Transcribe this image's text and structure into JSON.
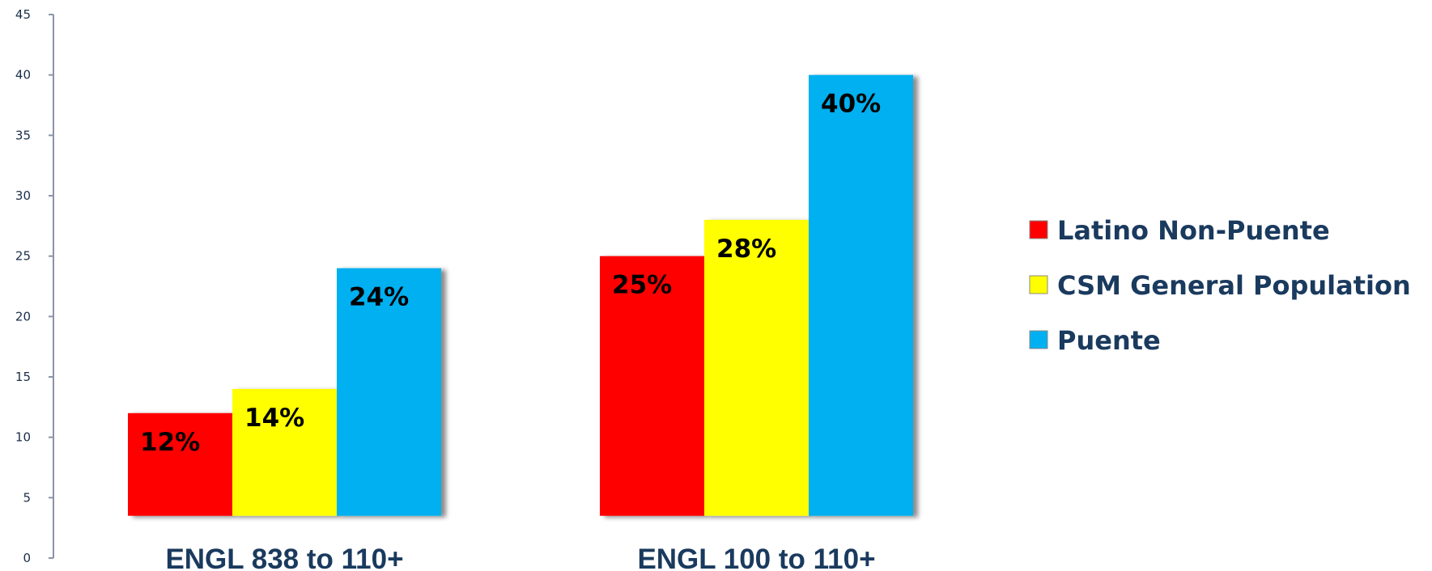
{
  "chart_data": {
    "type": "bar",
    "categories": [
      "ENGL 838 to 110+",
      "ENGL 100 to 110+"
    ],
    "series": [
      {
        "name": "Latino Non-Puente",
        "color": "#ff0000",
        "values": [
          12,
          25
        ],
        "labels": [
          "12%",
          "25%"
        ]
      },
      {
        "name": "CSM General Population",
        "color": "#ffff00",
        "values": [
          14,
          28
        ],
        "labels": [
          "14%",
          "28%"
        ]
      },
      {
        "name": "Puente",
        "color": "#00b0f0",
        "values": [
          24,
          40
        ],
        "labels": [
          "24%",
          "40%"
        ]
      }
    ],
    "ylim": [
      0,
      45
    ],
    "yticks": [
      "0",
      "5",
      "10",
      "15",
      "20",
      "25",
      "30",
      "35",
      "40",
      "45"
    ],
    "legend_position": "right",
    "grid": false
  }
}
